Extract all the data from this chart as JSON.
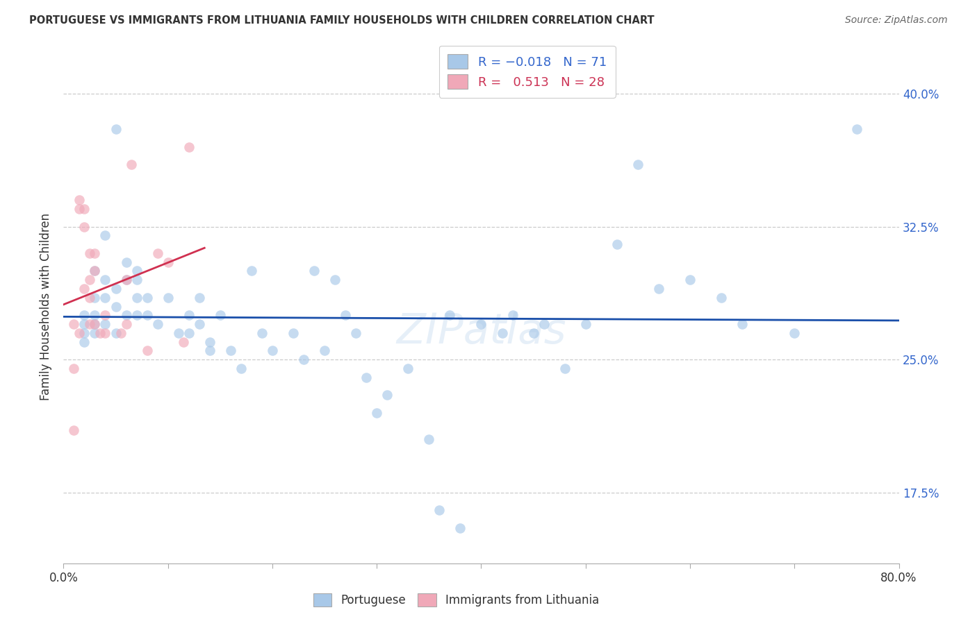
{
  "title": "PORTUGUESE VS IMMIGRANTS FROM LITHUANIA FAMILY HOUSEHOLDS WITH CHILDREN CORRELATION CHART",
  "source": "Source: ZipAtlas.com",
  "ylabel": "Family Households with Children",
  "ytick_vals": [
    0.175,
    0.25,
    0.325,
    0.4
  ],
  "ytick_labels": [
    "17.5%",
    "25.0%",
    "32.5%",
    "40.0%"
  ],
  "xlim": [
    0.0,
    0.8
  ],
  "ylim": [
    0.135,
    0.425
  ],
  "blue_scatter_color": "#a8c8e8",
  "pink_scatter_color": "#f0a8b8",
  "line_blue_color": "#1a4faa",
  "line_pink_color": "#d03050",
  "portuguese_x": [
    0.02,
    0.02,
    0.02,
    0.02,
    0.03,
    0.03,
    0.03,
    0.03,
    0.03,
    0.04,
    0.04,
    0.04,
    0.04,
    0.05,
    0.05,
    0.05,
    0.05,
    0.06,
    0.06,
    0.06,
    0.07,
    0.07,
    0.07,
    0.07,
    0.08,
    0.08,
    0.09,
    0.1,
    0.11,
    0.12,
    0.12,
    0.13,
    0.13,
    0.14,
    0.14,
    0.15,
    0.16,
    0.17,
    0.18,
    0.19,
    0.2,
    0.22,
    0.23,
    0.24,
    0.25,
    0.26,
    0.27,
    0.28,
    0.29,
    0.3,
    0.31,
    0.33,
    0.35,
    0.36,
    0.37,
    0.38,
    0.4,
    0.42,
    0.43,
    0.45,
    0.46,
    0.48,
    0.5,
    0.53,
    0.55,
    0.57,
    0.6,
    0.63,
    0.65,
    0.7,
    0.76
  ],
  "portuguese_y": [
    0.275,
    0.27,
    0.265,
    0.26,
    0.3,
    0.285,
    0.275,
    0.27,
    0.265,
    0.32,
    0.295,
    0.285,
    0.27,
    0.38,
    0.29,
    0.28,
    0.265,
    0.305,
    0.295,
    0.275,
    0.3,
    0.295,
    0.285,
    0.275,
    0.285,
    0.275,
    0.27,
    0.285,
    0.265,
    0.275,
    0.265,
    0.285,
    0.27,
    0.26,
    0.255,
    0.275,
    0.255,
    0.245,
    0.3,
    0.265,
    0.255,
    0.265,
    0.25,
    0.3,
    0.255,
    0.295,
    0.275,
    0.265,
    0.24,
    0.22,
    0.23,
    0.245,
    0.205,
    0.165,
    0.275,
    0.155,
    0.27,
    0.265,
    0.275,
    0.265,
    0.27,
    0.245,
    0.27,
    0.315,
    0.36,
    0.29,
    0.295,
    0.285,
    0.27,
    0.265,
    0.38
  ],
  "lithuania_x": [
    0.01,
    0.01,
    0.01,
    0.015,
    0.015,
    0.015,
    0.02,
    0.02,
    0.02,
    0.025,
    0.025,
    0.025,
    0.025,
    0.03,
    0.03,
    0.03,
    0.035,
    0.04,
    0.04,
    0.055,
    0.06,
    0.06,
    0.065,
    0.08,
    0.09,
    0.1,
    0.115,
    0.12
  ],
  "lithuania_y": [
    0.21,
    0.245,
    0.27,
    0.335,
    0.34,
    0.265,
    0.335,
    0.325,
    0.29,
    0.31,
    0.295,
    0.285,
    0.27,
    0.31,
    0.3,
    0.27,
    0.265,
    0.275,
    0.265,
    0.265,
    0.295,
    0.27,
    0.36,
    0.255,
    0.31,
    0.305,
    0.26,
    0.37
  ],
  "watermark": "ZIPatlas",
  "marker_size": 110,
  "scatter_alpha": 0.65
}
